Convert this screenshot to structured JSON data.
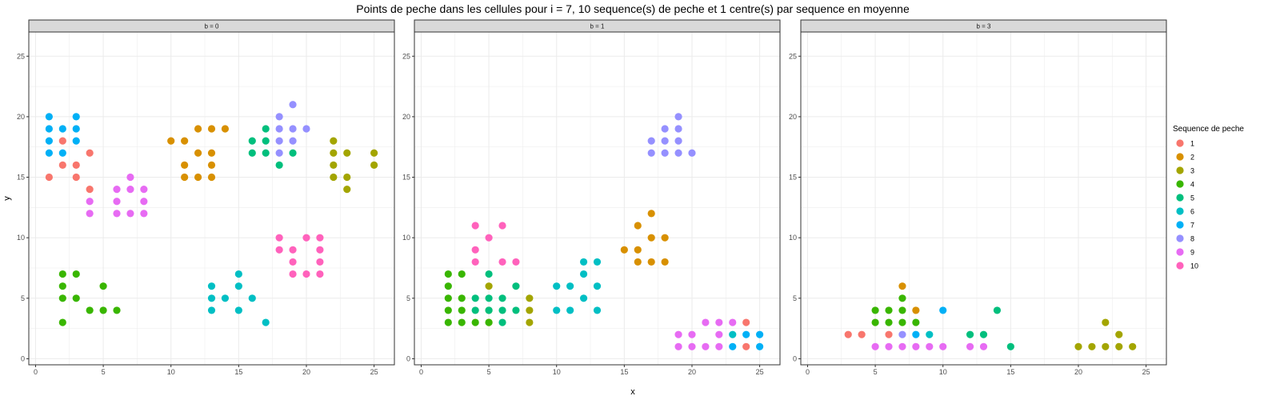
{
  "chart_data": {
    "type": "scatter",
    "title": "Points de peche dans les cellules pour i = 7, 10 sequence(s) de peche et 1 centre(s) par sequence en moyenne",
    "xlabel": "x",
    "ylabel": "y",
    "xlim": [
      -0.5,
      26.5
    ],
    "ylim": [
      -0.5,
      27
    ],
    "x_ticks": [
      "0",
      "5",
      "10",
      "15",
      "20",
      "25"
    ],
    "y_ticks": [
      "0",
      "5",
      "10",
      "15",
      "20",
      "25"
    ],
    "grid": true,
    "legend": {
      "title": "Sequence de peche",
      "position": "right",
      "entries": [
        {
          "name": "1",
          "color": "#F8766D"
        },
        {
          "name": "2",
          "color": "#D89000"
        },
        {
          "name": "3",
          "color": "#A3A500"
        },
        {
          "name": "4",
          "color": "#39B600"
        },
        {
          "name": "5",
          "color": "#00BF7D"
        },
        {
          "name": "6",
          "color": "#00BFC4"
        },
        {
          "name": "7",
          "color": "#00B0F6"
        },
        {
          "name": "8",
          "color": "#9590FF"
        },
        {
          "name": "9",
          "color": "#E76BF3"
        },
        {
          "name": "10",
          "color": "#FF62BC"
        }
      ]
    },
    "panels": [
      {
        "label": "b = 0",
        "series": [
          {
            "name": "1",
            "points": [
              [
                1,
                15
              ],
              [
                2,
                16
              ],
              [
                2,
                18
              ],
              [
                3,
                15
              ],
              [
                3,
                16
              ],
              [
                4,
                14
              ],
              [
                4,
                17
              ]
            ]
          },
          {
            "name": "2",
            "points": [
              [
                10,
                18
              ],
              [
                11,
                15
              ],
              [
                11,
                16
              ],
              [
                11,
                18
              ],
              [
                12,
                15
              ],
              [
                12,
                17
              ],
              [
                12,
                19
              ],
              [
                13,
                15
              ],
              [
                13,
                16
              ],
              [
                13,
                17
              ],
              [
                13,
                19
              ],
              [
                14,
                19
              ]
            ]
          },
          {
            "name": "3",
            "points": [
              [
                22,
                15
              ],
              [
                22,
                16
              ],
              [
                22,
                17
              ],
              [
                22,
                18
              ],
              [
                23,
                14
              ],
              [
                23,
                15
              ],
              [
                23,
                17
              ],
              [
                25,
                16
              ],
              [
                25,
                17
              ]
            ]
          },
          {
            "name": "4",
            "points": [
              [
                2,
                3
              ],
              [
                2,
                5
              ],
              [
                2,
                6
              ],
              [
                2,
                7
              ],
              [
                3,
                5
              ],
              [
                3,
                7
              ],
              [
                4,
                4
              ],
              [
                5,
                4
              ],
              [
                5,
                6
              ],
              [
                6,
                4
              ]
            ]
          },
          {
            "name": "5",
            "points": [
              [
                16,
                17
              ],
              [
                16,
                18
              ],
              [
                17,
                17
              ],
              [
                17,
                18
              ],
              [
                17,
                19
              ],
              [
                18,
                16
              ],
              [
                19,
                17
              ]
            ]
          },
          {
            "name": "6",
            "points": [
              [
                13,
                4
              ],
              [
                13,
                5
              ],
              [
                13,
                6
              ],
              [
                14,
                5
              ],
              [
                15,
                4
              ],
              [
                15,
                6
              ],
              [
                15,
                7
              ],
              [
                16,
                5
              ],
              [
                17,
                3
              ]
            ]
          },
          {
            "name": "7",
            "points": [
              [
                1,
                17
              ],
              [
                1,
                18
              ],
              [
                1,
                19
              ],
              [
                1,
                20
              ],
              [
                2,
                17
              ],
              [
                2,
                19
              ],
              [
                3,
                18
              ],
              [
                3,
                19
              ],
              [
                3,
                20
              ]
            ]
          },
          {
            "name": "8",
            "points": [
              [
                18,
                17
              ],
              [
                18,
                18
              ],
              [
                18,
                19
              ],
              [
                18,
                20
              ],
              [
                19,
                18
              ],
              [
                19,
                19
              ],
              [
                19,
                21
              ],
              [
                20,
                19
              ]
            ]
          },
          {
            "name": "9",
            "points": [
              [
                4,
                12
              ],
              [
                4,
                13
              ],
              [
                6,
                12
              ],
              [
                6,
                13
              ],
              [
                6,
                14
              ],
              [
                7,
                12
              ],
              [
                7,
                14
              ],
              [
                7,
                15
              ],
              [
                8,
                12
              ],
              [
                8,
                13
              ],
              [
                8,
                14
              ]
            ]
          },
          {
            "name": "10",
            "points": [
              [
                18,
                9
              ],
              [
                18,
                10
              ],
              [
                19,
                7
              ],
              [
                19,
                8
              ],
              [
                19,
                9
              ],
              [
                20,
                7
              ],
              [
                20,
                10
              ],
              [
                21,
                7
              ],
              [
                21,
                8
              ],
              [
                21,
                9
              ],
              [
                21,
                10
              ]
            ]
          }
        ]
      },
      {
        "label": "b = 1",
        "series": [
          {
            "name": "1",
            "points": [
              [
                24,
                1
              ],
              [
                24,
                3
              ]
            ]
          },
          {
            "name": "2",
            "points": [
              [
                15,
                9
              ],
              [
                16,
                8
              ],
              [
                16,
                9
              ],
              [
                16,
                11
              ],
              [
                17,
                8
              ],
              [
                17,
                10
              ],
              [
                17,
                12
              ],
              [
                18,
                8
              ],
              [
                18,
                10
              ]
            ]
          },
          {
            "name": "3",
            "points": [
              [
                5,
                3
              ],
              [
                5,
                6
              ],
              [
                8,
                3
              ],
              [
                8,
                4
              ],
              [
                8,
                5
              ]
            ]
          },
          {
            "name": "4",
            "points": [
              [
                2,
                3
              ],
              [
                2,
                4
              ],
              [
                2,
                5
              ],
              [
                2,
                6
              ],
              [
                2,
                7
              ],
              [
                3,
                3
              ],
              [
                3,
                4
              ],
              [
                3,
                5
              ],
              [
                3,
                7
              ],
              [
                4,
                3
              ],
              [
                5,
                3
              ],
              [
                5,
                4
              ]
            ]
          },
          {
            "name": "5",
            "points": [
              [
                4,
                4
              ],
              [
                4,
                5
              ],
              [
                5,
                4
              ],
              [
                5,
                5
              ],
              [
                5,
                7
              ],
              [
                6,
                3
              ],
              [
                6,
                4
              ],
              [
                6,
                5
              ],
              [
                7,
                4
              ],
              [
                7,
                6
              ]
            ]
          },
          {
            "name": "6",
            "points": [
              [
                10,
                4
              ],
              [
                10,
                6
              ],
              [
                11,
                4
              ],
              [
                11,
                6
              ],
              [
                12,
                5
              ],
              [
                12,
                7
              ],
              [
                12,
                8
              ],
              [
                13,
                4
              ],
              [
                13,
                6
              ],
              [
                13,
                8
              ],
              [
                23,
                2
              ]
            ]
          },
          {
            "name": "7",
            "points": [
              [
                23,
                1
              ],
              [
                24,
                2
              ],
              [
                25,
                1
              ],
              [
                25,
                2
              ]
            ]
          },
          {
            "name": "8",
            "points": [
              [
                17,
                17
              ],
              [
                17,
                18
              ],
              [
                18,
                17
              ],
              [
                18,
                18
              ],
              [
                18,
                19
              ],
              [
                19,
                17
              ],
              [
                19,
                18
              ],
              [
                19,
                19
              ],
              [
                19,
                20
              ],
              [
                20,
                17
              ]
            ]
          },
          {
            "name": "9",
            "points": [
              [
                19,
                1
              ],
              [
                19,
                2
              ],
              [
                20,
                1
              ],
              [
                20,
                2
              ],
              [
                21,
                1
              ],
              [
                21,
                3
              ],
              [
                22,
                1
              ],
              [
                22,
                2
              ],
              [
                22,
                3
              ],
              [
                23,
                3
              ]
            ]
          },
          {
            "name": "10",
            "points": [
              [
                4,
                8
              ],
              [
                4,
                9
              ],
              [
                4,
                11
              ],
              [
                5,
                10
              ],
              [
                6,
                8
              ],
              [
                6,
                11
              ],
              [
                7,
                8
              ]
            ]
          }
        ]
      },
      {
        "label": "b = 3",
        "series": [
          {
            "name": "1",
            "points": [
              [
                3,
                2
              ],
              [
                4,
                2
              ],
              [
                6,
                2
              ]
            ]
          },
          {
            "name": "2",
            "points": [
              [
                7,
                6
              ],
              [
                8,
                4
              ]
            ]
          },
          {
            "name": "3",
            "points": [
              [
                20,
                1
              ],
              [
                21,
                1
              ],
              [
                22,
                1
              ],
              [
                22,
                3
              ],
              [
                23,
                1
              ],
              [
                23,
                2
              ],
              [
                24,
                1
              ]
            ]
          },
          {
            "name": "4",
            "points": [
              [
                5,
                3
              ],
              [
                5,
                4
              ],
              [
                6,
                3
              ],
              [
                6,
                4
              ],
              [
                7,
                3
              ],
              [
                7,
                4
              ],
              [
                7,
                5
              ],
              [
                8,
                3
              ]
            ]
          },
          {
            "name": "5",
            "points": [
              [
                12,
                2
              ],
              [
                13,
                2
              ],
              [
                14,
                4
              ],
              [
                15,
                1
              ]
            ]
          },
          {
            "name": "6",
            "points": [
              [
                9,
                2
              ]
            ]
          },
          {
            "name": "7",
            "points": [
              [
                8,
                2
              ],
              [
                10,
                4
              ]
            ]
          },
          {
            "name": "8",
            "points": [
              [
                7,
                2
              ]
            ]
          },
          {
            "name": "9",
            "points": [
              [
                5,
                1
              ],
              [
                6,
                1
              ],
              [
                7,
                1
              ],
              [
                8,
                1
              ],
              [
                9,
                1
              ],
              [
                10,
                1
              ],
              [
                12,
                1
              ],
              [
                13,
                1
              ]
            ]
          },
          {
            "name": "10",
            "points": []
          }
        ]
      }
    ]
  }
}
